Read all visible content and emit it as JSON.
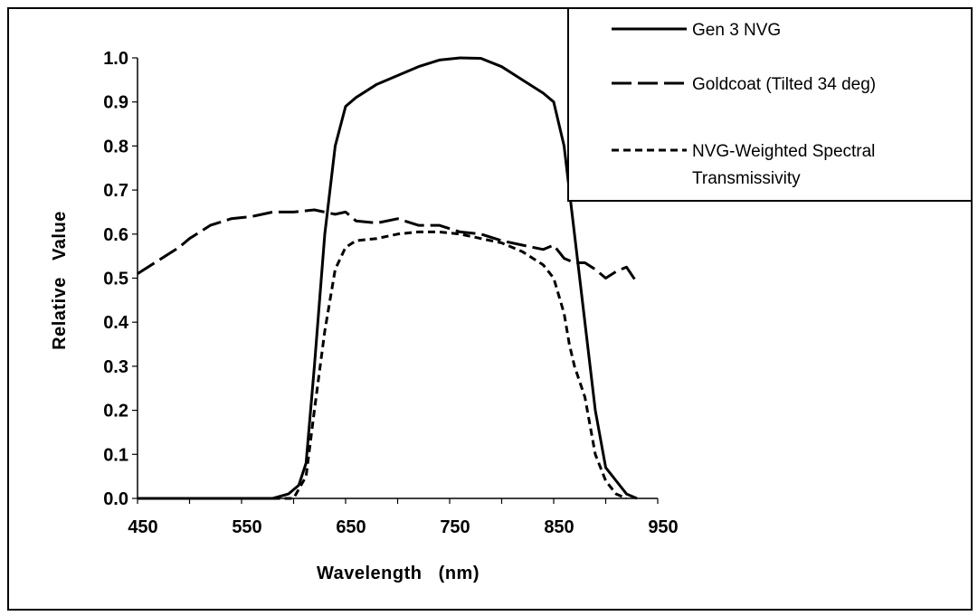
{
  "chart_data": {
    "type": "line",
    "title": "",
    "xlabel": "Wavelength   (nm)",
    "ylabel": "Relative   Value",
    "xlim": [
      450,
      950
    ],
    "ylim": [
      0.0,
      1.0
    ],
    "x_ticks": [
      "450",
      "550",
      "650",
      "750",
      "850",
      "950"
    ],
    "y_ticks": [
      "0.0",
      "0.1",
      "0.2",
      "0.3",
      "0.4",
      "0.5",
      "0.6",
      "0.7",
      "0.8",
      "0.9",
      "1.0"
    ],
    "grid": false,
    "legend_position": "top-right",
    "series": [
      {
        "name": "Gen 3 NVG",
        "style": "solid",
        "x": [
          450,
          500,
          550,
          580,
          595,
          605,
          612,
          620,
          630,
          640,
          650,
          660,
          680,
          700,
          720,
          740,
          760,
          780,
          800,
          820,
          840,
          850,
          860,
          870,
          880,
          890,
          900,
          910,
          920,
          930
        ],
        "y": [
          0.0,
          0.0,
          0.0,
          0.0,
          0.01,
          0.03,
          0.08,
          0.3,
          0.6,
          0.8,
          0.89,
          0.91,
          0.94,
          0.96,
          0.98,
          0.995,
          1.0,
          0.999,
          0.98,
          0.95,
          0.92,
          0.9,
          0.8,
          0.6,
          0.4,
          0.2,
          0.07,
          0.04,
          0.01,
          0.0
        ]
      },
      {
        "name": "Goldcoat (Tilted 34 deg)",
        "style": "long-dash",
        "x": [
          450,
          470,
          490,
          500,
          520,
          540,
          560,
          580,
          600,
          620,
          640,
          650,
          660,
          680,
          700,
          720,
          740,
          760,
          780,
          800,
          820,
          840,
          850,
          860,
          870,
          880,
          890,
          900,
          910,
          920,
          930
        ],
        "y": [
          0.51,
          0.54,
          0.57,
          0.59,
          0.62,
          0.635,
          0.64,
          0.65,
          0.65,
          0.655,
          0.645,
          0.65,
          0.63,
          0.625,
          0.635,
          0.62,
          0.62,
          0.605,
          0.6,
          0.585,
          0.575,
          0.565,
          0.575,
          0.545,
          0.535,
          0.535,
          0.52,
          0.5,
          0.515,
          0.525,
          0.49
        ]
      },
      {
        "name": "NVG-Weighted Spectral Transmissivity",
        "style": "short-dash",
        "x": [
          580,
          600,
          612,
          620,
          630,
          640,
          650,
          660,
          680,
          700,
          720,
          740,
          760,
          780,
          800,
          820,
          840,
          850,
          860,
          865,
          870,
          880,
          890,
          900,
          910,
          920
        ],
        "y": [
          0.0,
          0.0,
          0.05,
          0.2,
          0.38,
          0.52,
          0.57,
          0.585,
          0.59,
          0.6,
          0.605,
          0.605,
          0.6,
          0.59,
          0.58,
          0.56,
          0.53,
          0.5,
          0.42,
          0.35,
          0.3,
          0.23,
          0.1,
          0.04,
          0.01,
          0.0
        ]
      }
    ]
  }
}
